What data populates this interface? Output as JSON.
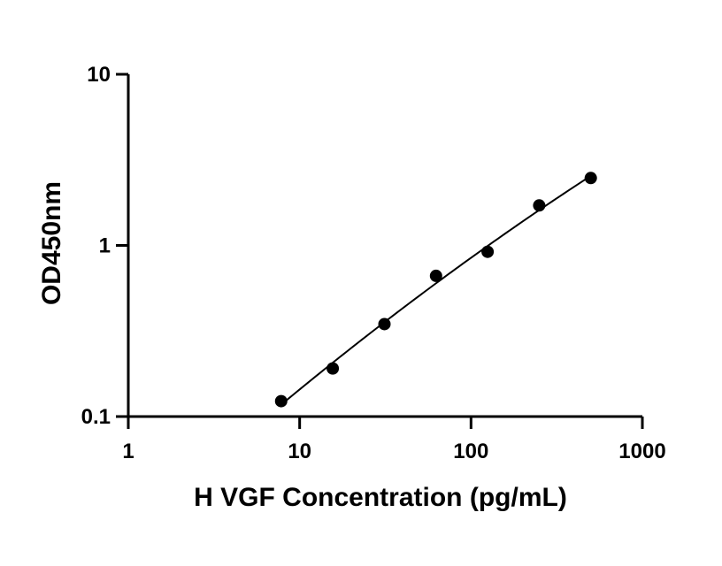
{
  "chart_data": {
    "type": "scatter",
    "title": "",
    "xlabel": "H VGF Concentration (pg/mL)",
    "ylabel": "OD450nm",
    "xscale": "log",
    "yscale": "log",
    "xlim": [
      1,
      1000
    ],
    "ylim": [
      0.1,
      10
    ],
    "x_ticks": [
      "1",
      "10",
      "100",
      "1000"
    ],
    "y_ticks": [
      "0.1",
      "1",
      "10"
    ],
    "grid": false,
    "legend": "none",
    "series": [
      {
        "x": [
          7.8,
          15.6,
          31.25,
          62.5,
          125,
          250,
          500
        ],
        "y": [
          0.123,
          0.191,
          0.347,
          0.664,
          0.918,
          1.713,
          2.476
        ],
        "marker": "circle",
        "fit": "smooth curve"
      }
    ],
    "colors": {
      "points": "#000000",
      "line": "#000000",
      "axes": "#000000"
    }
  }
}
